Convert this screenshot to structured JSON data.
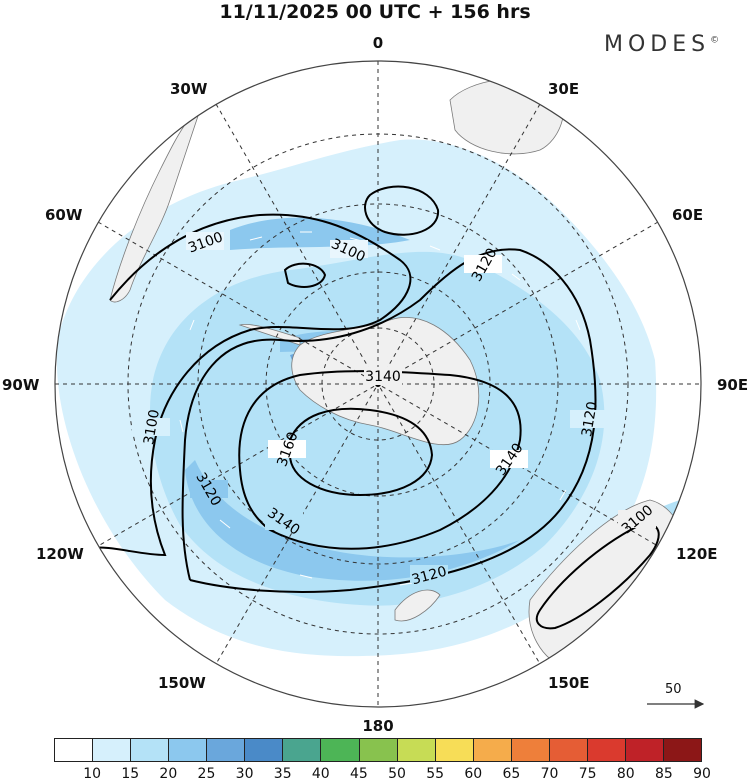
{
  "title": "11/11/2025  00 UTC  + 156 hrs",
  "brand": "MODES",
  "brand_mark": "©",
  "longitudes": {
    "top": "0",
    "bottom": "180",
    "left": "90W",
    "right": "90E",
    "nw1": "30W",
    "nw2": "60W",
    "ne1": "30E",
    "ne2": "60E",
    "sw1": "120W",
    "sw2": "150W",
    "se1": "120E",
    "se2": "150E"
  },
  "contours": {
    "c1": "3100",
    "c2": "3100",
    "c3": "3120",
    "c4": "3140",
    "c5": "3100",
    "c6": "3160",
    "c7": "3140",
    "c8": "3120",
    "c9": "3140",
    "c10": "3120",
    "c11": "3120",
    "c12": "3100"
  },
  "vector_scale": "50",
  "colorbar": {
    "colors": [
      "#ffffff",
      "#d6f0fc",
      "#b4e2f7",
      "#8cc8ee",
      "#6aa7dc",
      "#4a8ac8",
      "#4aa58f",
      "#4db556",
      "#88c24e",
      "#c7dc55",
      "#f7dd57",
      "#f5ac4b",
      "#ee7f3a",
      "#e55d35",
      "#da3a2e",
      "#bf2228",
      "#8c1717"
    ],
    "ticks": [
      "10",
      "15",
      "20",
      "25",
      "30",
      "35",
      "40",
      "45",
      "50",
      "55",
      "60",
      "65",
      "70",
      "75",
      "80",
      "85",
      "90"
    ]
  }
}
